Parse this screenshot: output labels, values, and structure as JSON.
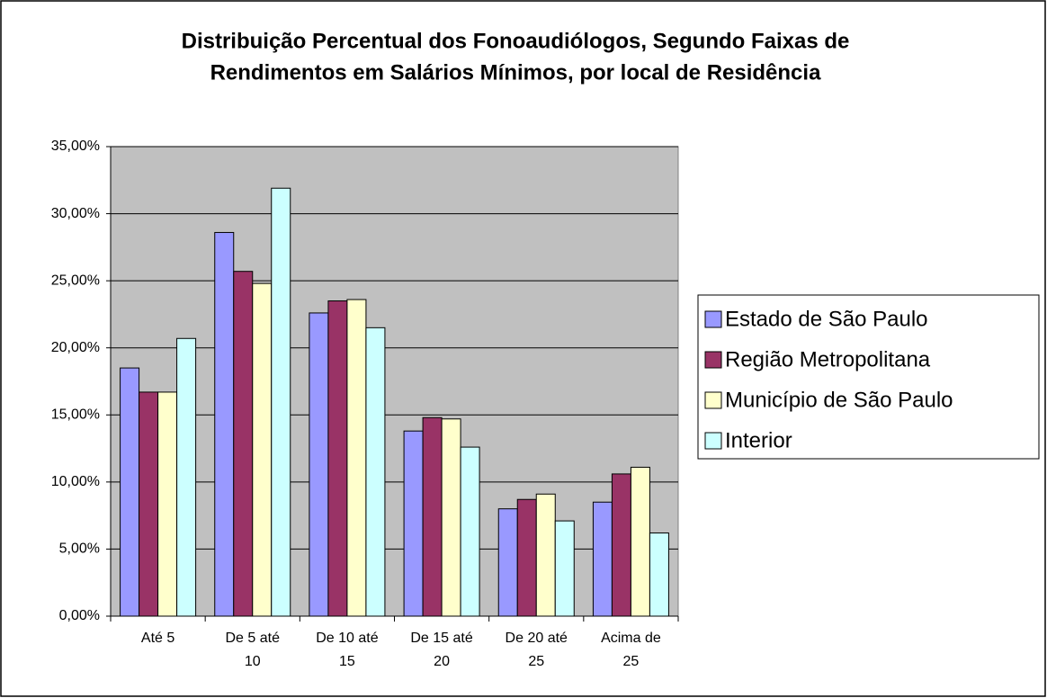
{
  "chart_data": {
    "type": "bar",
    "title": [
      "Distribuição Percentual dos Fonoaudiólogos, Segundo Faixas de",
      "Rendimentos em Salários Mínimos, por local de Residência"
    ],
    "categories": [
      "Até 5",
      "De 5 até 10",
      "De 10 até 15",
      "De 15 até 20",
      "De 20 até 25",
      "Acima de 25"
    ],
    "series": [
      {
        "name": "Estado de São Paulo",
        "color": "#9999ff",
        "values": [
          18.5,
          28.6,
          22.6,
          13.8,
          8.0,
          8.5
        ]
      },
      {
        "name": "Região Metropolitana",
        "color": "#993366",
        "values": [
          16.7,
          25.7,
          23.5,
          14.8,
          8.7,
          10.6
        ]
      },
      {
        "name": "Município de São Paulo",
        "color": "#ffffcc",
        "values": [
          16.7,
          24.8,
          23.6,
          14.7,
          9.1,
          11.1
        ]
      },
      {
        "name": "Interior",
        "color": "#ccffff",
        "values": [
          20.7,
          31.9,
          21.5,
          12.6,
          7.1,
          6.2
        ]
      }
    ],
    "ylim": [
      0,
      35
    ],
    "yticks": [
      {
        "value": 0,
        "label": "0,00%"
      },
      {
        "value": 5,
        "label": "5,00%"
      },
      {
        "value": 10,
        "label": "10,00%"
      },
      {
        "value": 15,
        "label": "15,00%"
      },
      {
        "value": 20,
        "label": "20,00%"
      },
      {
        "value": 25,
        "label": "25,00%"
      },
      {
        "value": 30,
        "label": "30,00%"
      },
      {
        "value": 35,
        "label": "35,00%"
      }
    ],
    "grid": true,
    "legend": "right"
  }
}
